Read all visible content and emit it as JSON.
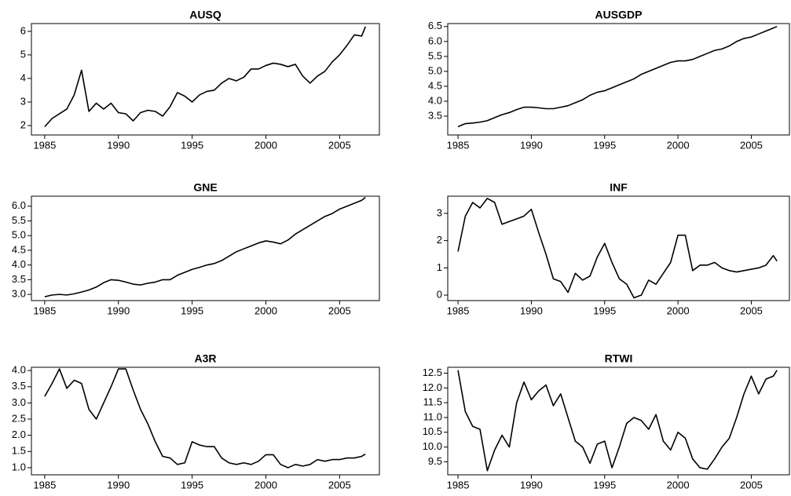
{
  "chart_data": [
    {
      "type": "line",
      "title": "AUSQ",
      "color": "#000000",
      "x": [
        1985,
        1985.5,
        1986,
        1986.5,
        1987,
        1987.5,
        1988,
        1988.5,
        1989,
        1989.5,
        1990,
        1990.5,
        1991,
        1991.5,
        1992,
        1992.5,
        1993,
        1993.5,
        1994,
        1994.5,
        1995,
        1995.5,
        1996,
        1996.5,
        1997,
        1997.5,
        1998,
        1998.5,
        1999,
        1999.5,
        2000,
        2000.5,
        2001,
        2001.5,
        2002,
        2002.5,
        2003,
        2003.5,
        2004,
        2004.5,
        2005,
        2005.5,
        2006,
        2006.5,
        2006.75
      ],
      "values": [
        1.95,
        2.3,
        2.5,
        2.7,
        3.3,
        4.35,
        2.6,
        2.95,
        2.7,
        2.95,
        2.55,
        2.5,
        2.2,
        2.55,
        2.65,
        2.6,
        2.4,
        2.8,
        3.4,
        3.25,
        3.0,
        3.3,
        3.45,
        3.5,
        3.8,
        4.0,
        3.9,
        4.05,
        4.4,
        4.4,
        4.55,
        4.65,
        4.6,
        4.5,
        4.6,
        4.1,
        3.8,
        4.1,
        4.3,
        4.7,
        5.0,
        5.4,
        5.85,
        5.8,
        6.2
      ],
      "xlim": [
        1984.1,
        2007.7
      ],
      "ylim": [
        1.6,
        6.33
      ],
      "xticks": [
        1985,
        1990,
        1995,
        2000,
        2005
      ],
      "yticks": [
        2,
        3,
        4,
        5,
        6
      ]
    },
    {
      "type": "line",
      "title": "AUSGDP",
      "color": "#000000",
      "x": [
        1985,
        1985.5,
        1986,
        1986.5,
        1987,
        1987.5,
        1988,
        1988.5,
        1989,
        1989.5,
        1990,
        1990.5,
        1991,
        1991.5,
        1992,
        1992.5,
        1993,
        1993.5,
        1994,
        1994.5,
        1995,
        1995.5,
        1996,
        1996.5,
        1997,
        1997.5,
        1998,
        1998.5,
        1999,
        1999.5,
        2000,
        2000.5,
        2001,
        2001.5,
        2002,
        2002.5,
        2003,
        2003.5,
        2004,
        2004.5,
        2005,
        2005.5,
        2006,
        2006.5,
        2006.75
      ],
      "values": [
        3.15,
        3.25,
        3.27,
        3.3,
        3.35,
        3.45,
        3.55,
        3.62,
        3.72,
        3.8,
        3.8,
        3.78,
        3.75,
        3.75,
        3.8,
        3.85,
        3.95,
        4.05,
        4.2,
        4.3,
        4.35,
        4.45,
        4.55,
        4.65,
        4.75,
        4.9,
        5.0,
        5.1,
        5.2,
        5.3,
        5.35,
        5.35,
        5.4,
        5.5,
        5.6,
        5.7,
        5.75,
        5.85,
        6.0,
        6.1,
        6.15,
        6.25,
        6.35,
        6.45,
        6.5
      ],
      "xlim": [
        1984.3,
        2007.6
      ],
      "ylim": [
        2.87,
        6.6
      ],
      "xticks": [
        1985,
        1990,
        1995,
        2000,
        2005
      ],
      "yticks": [
        3.5,
        {
          "value": 4,
          "label": "4.0"
        },
        4.5,
        {
          "value": 5,
          "label": "5.0"
        },
        5.5,
        {
          "value": 6,
          "label": "6.0"
        },
        6.5
      ]
    },
    {
      "type": "line",
      "title": "GNE",
      "color": "#000000",
      "x": [
        1985,
        1985.5,
        1986,
        1986.5,
        1987,
        1987.5,
        1988,
        1988.5,
        1989,
        1989.5,
        1990,
        1990.5,
        1991,
        1991.5,
        1992,
        1992.5,
        1993,
        1993.5,
        1994,
        1994.5,
        1995,
        1995.5,
        1996,
        1996.5,
        1997,
        1997.5,
        1998,
        1998.5,
        1999,
        1999.5,
        2000,
        2000.5,
        2001,
        2001.5,
        2002,
        2002.5,
        2003,
        2003.5,
        2004,
        2004.5,
        2005,
        2005.5,
        2006,
        2006.5,
        2006.75
      ],
      "values": [
        2.92,
        2.98,
        3.0,
        2.98,
        3.02,
        3.08,
        3.15,
        3.25,
        3.4,
        3.5,
        3.48,
        3.42,
        3.35,
        3.32,
        3.38,
        3.42,
        3.5,
        3.5,
        3.65,
        3.75,
        3.85,
        3.92,
        4.0,
        4.05,
        4.15,
        4.3,
        4.45,
        4.55,
        4.65,
        4.75,
        4.82,
        4.78,
        4.72,
        4.85,
        5.05,
        5.2,
        5.35,
        5.5,
        5.65,
        5.75,
        5.9,
        6.0,
        6.1,
        6.2,
        6.3
      ],
      "xlim": [
        1984.1,
        2007.7
      ],
      "ylim": [
        2.79,
        6.34
      ],
      "xticks": [
        1985,
        1990,
        1995,
        2000,
        2005
      ],
      "yticks": [
        {
          "value": 3,
          "label": "3.0"
        },
        3.5,
        {
          "value": 4,
          "label": "4.0"
        },
        4.5,
        {
          "value": 5,
          "label": "5.0"
        },
        5.5,
        {
          "value": 6,
          "label": "6.0"
        }
      ]
    },
    {
      "type": "line",
      "title": "INF",
      "color": "#000000",
      "x": [
        1985,
        1985.5,
        1986,
        1986.5,
        1987,
        1987.5,
        1988,
        1988.5,
        1989,
        1989.5,
        1990,
        1990.5,
        1991,
        1991.5,
        1992,
        1992.5,
        1993,
        1993.5,
        1994,
        1994.5,
        1995,
        1995.5,
        1996,
        1996.5,
        1997,
        1997.5,
        1998,
        1998.5,
        1999,
        1999.5,
        2000,
        2000.5,
        2001,
        2001.5,
        2002,
        2002.5,
        2003,
        2003.5,
        2004,
        2004.5,
        2005,
        2005.5,
        2006,
        2006.5,
        2006.75
      ],
      "values": [
        1.6,
        2.9,
        3.4,
        3.2,
        3.55,
        3.4,
        2.6,
        2.7,
        2.8,
        2.9,
        3.15,
        2.3,
        1.5,
        0.6,
        0.5,
        0.1,
        0.8,
        0.55,
        0.7,
        1.4,
        1.9,
        1.2,
        0.6,
        0.4,
        -0.1,
        0.0,
        0.55,
        0.4,
        0.8,
        1.2,
        2.2,
        2.2,
        0.9,
        1.1,
        1.1,
        1.2,
        1.0,
        0.9,
        0.85,
        0.9,
        0.95,
        1.0,
        1.1,
        1.45,
        1.25
      ],
      "xlim": [
        1984.3,
        2007.6
      ],
      "ylim": [
        -0.2,
        3.63
      ],
      "xticks": [
        1985,
        1990,
        1995,
        2000,
        2005
      ],
      "yticks": [
        0,
        1,
        2,
        3
      ]
    },
    {
      "type": "line",
      "title": "A3R",
      "color": "#000000",
      "x": [
        1985,
        1985.5,
        1986,
        1986.5,
        1987,
        1987.5,
        1988,
        1988.5,
        1989,
        1989.5,
        1990,
        1990.5,
        1991,
        1991.5,
        1992,
        1992.5,
        1993,
        1993.5,
        1994,
        1994.5,
        1995,
        1995.5,
        1996,
        1996.5,
        1997,
        1997.5,
        1998,
        1998.5,
        1999,
        1999.5,
        2000,
        2000.5,
        2001,
        2001.5,
        2002,
        2002.5,
        2003,
        2003.5,
        2004,
        2004.5,
        2005,
        2005.5,
        2006,
        2006.5,
        2006.75
      ],
      "values": [
        3.2,
        3.6,
        4.05,
        3.45,
        3.7,
        3.6,
        2.8,
        2.5,
        3.0,
        3.5,
        4.05,
        4.05,
        3.4,
        2.8,
        2.35,
        1.8,
        1.35,
        1.3,
        1.1,
        1.15,
        1.8,
        1.7,
        1.65,
        1.65,
        1.3,
        1.15,
        1.1,
        1.15,
        1.1,
        1.2,
        1.4,
        1.4,
        1.1,
        1.0,
        1.1,
        1.05,
        1.1,
        1.25,
        1.2,
        1.25,
        1.25,
        1.3,
        1.3,
        1.35,
        1.42
      ],
      "xlim": [
        1984.1,
        2007.7
      ],
      "ylim": [
        0.78,
        4.1
      ],
      "xticks": [
        1985,
        1990,
        1995,
        2000,
        2005
      ],
      "yticks": [
        {
          "value": 1,
          "label": "1.0"
        },
        1.5,
        {
          "value": 2,
          "label": "2.0"
        },
        2.5,
        {
          "value": 3,
          "label": "3.0"
        },
        3.5,
        {
          "value": 4,
          "label": "4.0"
        }
      ]
    },
    {
      "type": "line",
      "title": "RTWI",
      "color": "#000000",
      "x": [
        1985,
        1985.5,
        1986,
        1986.5,
        1987,
        1987.5,
        1988,
        1988.5,
        1989,
        1989.5,
        1990,
        1990.5,
        1991,
        1991.5,
        1992,
        1992.5,
        1993,
        1993.5,
        1994,
        1994.5,
        1995,
        1995.5,
        1996,
        1996.5,
        1997,
        1997.5,
        1998,
        1998.5,
        1999,
        1999.5,
        2000,
        2000.5,
        2001,
        2001.5,
        2002,
        2002.5,
        2003,
        2003.5,
        2004,
        2004.5,
        2005,
        2005.5,
        2006,
        2006.5,
        2006.75
      ],
      "values": [
        12.6,
        11.2,
        10.7,
        10.6,
        9.2,
        9.9,
        10.4,
        10.0,
        11.5,
        12.2,
        11.6,
        11.9,
        12.1,
        11.4,
        11.8,
        11.0,
        10.2,
        10.0,
        9.45,
        10.1,
        10.2,
        9.3,
        10.0,
        10.8,
        11.0,
        10.9,
        10.6,
        11.1,
        10.2,
        9.9,
        10.5,
        10.3,
        9.6,
        9.3,
        9.25,
        9.6,
        10.0,
        10.3,
        11.0,
        11.8,
        12.4,
        11.8,
        12.3,
        12.4,
        12.6
      ],
      "xlim": [
        1984.3,
        2007.6
      ],
      "ylim": [
        9.06,
        12.7
      ],
      "xticks": [
        1985,
        1990,
        1995,
        2000,
        2005
      ],
      "yticks": [
        9.5,
        {
          "value": 10,
          "label": "10.0"
        },
        10.5,
        {
          "value": 11,
          "label": "11.0"
        },
        11.5,
        {
          "value": 12,
          "label": "12.0"
        },
        12.5
      ]
    }
  ]
}
